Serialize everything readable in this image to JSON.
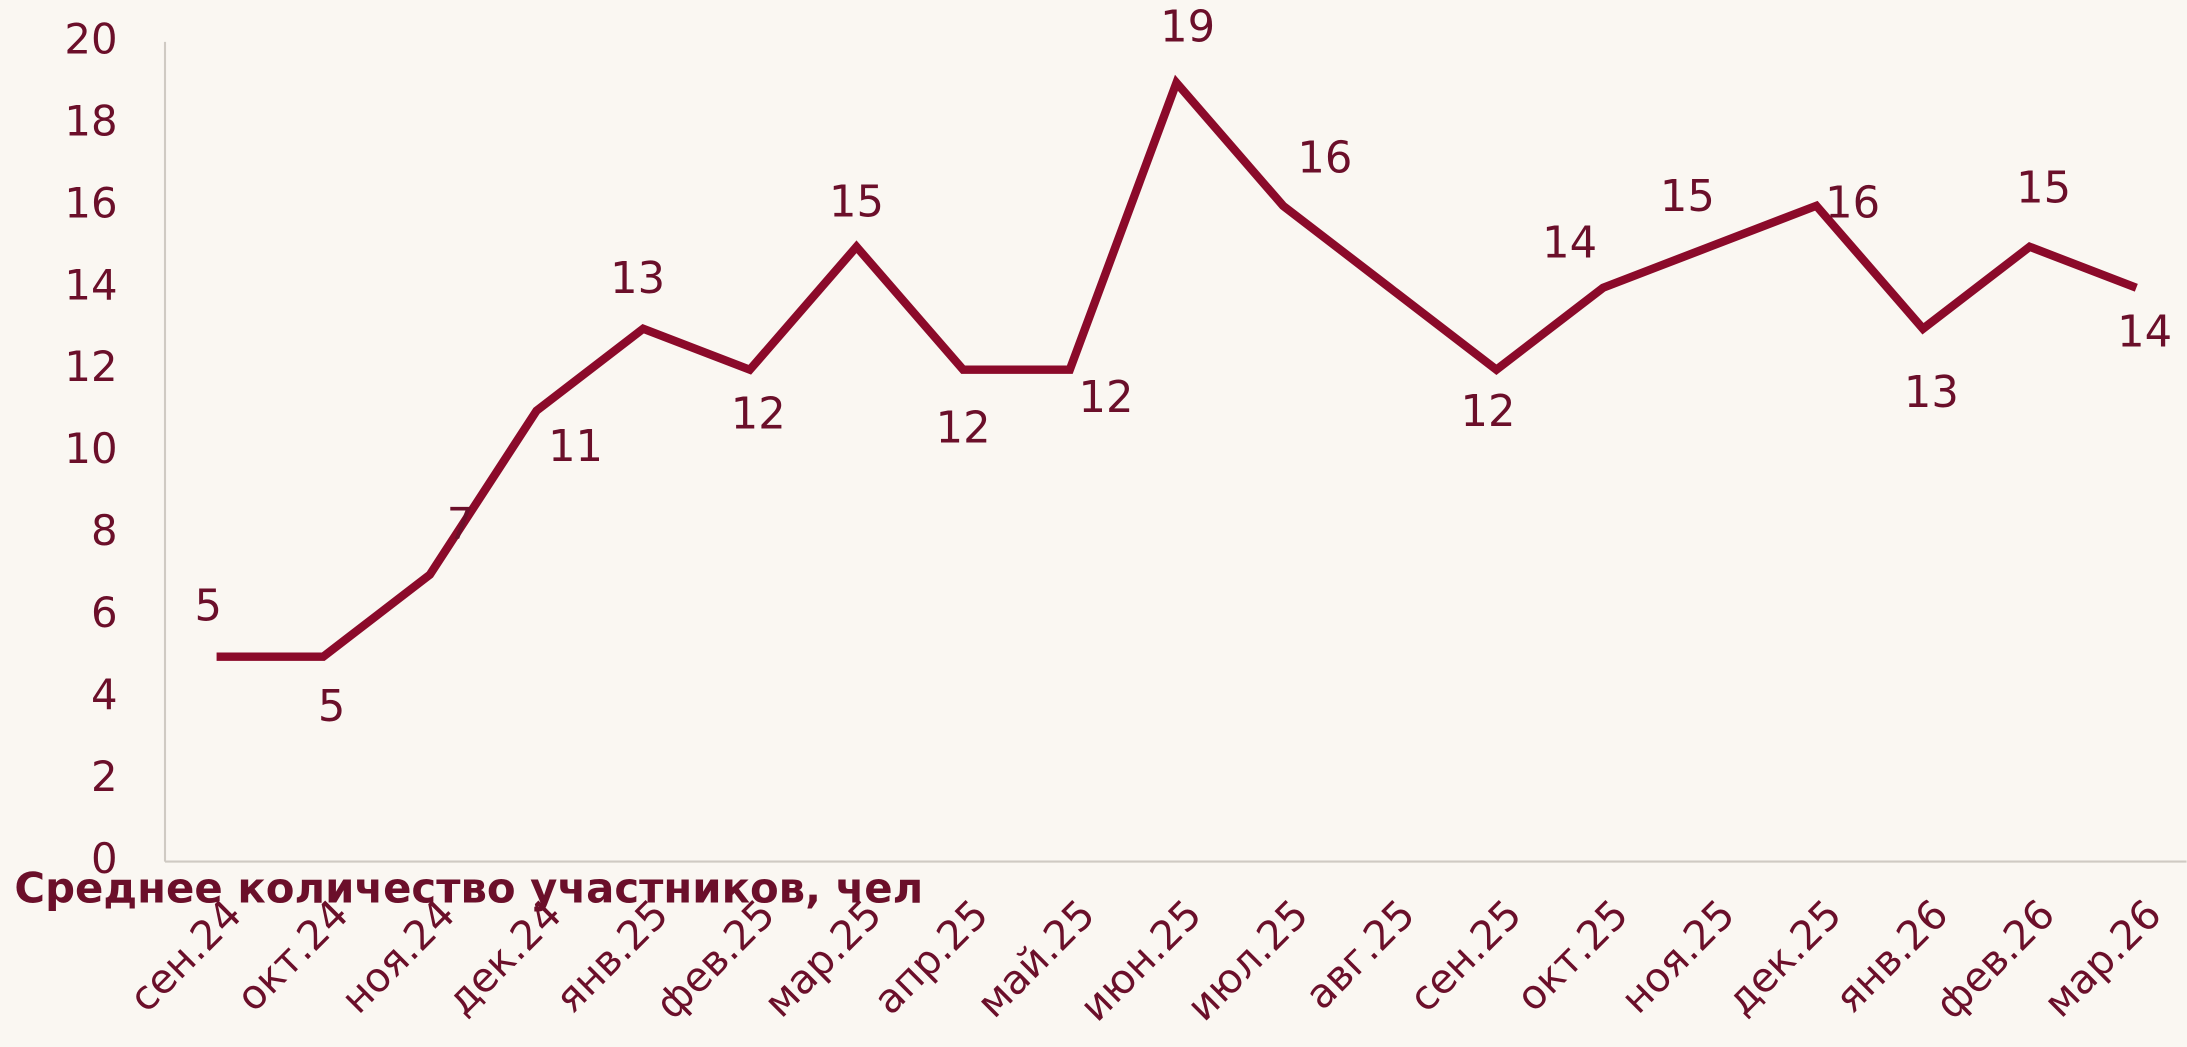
{
  "chart_data": {
    "type": "line",
    "x_axis_label": "Среднее количество участников, чел",
    "categories": [
      "сен.24",
      "окт.24",
      "ноя.24",
      "дек.24",
      "янв.25",
      "фев.25",
      "мар.25",
      "апр.25",
      "май.25",
      "июн.25",
      "июл.25",
      "авг.25",
      "сен.25",
      "окт.25",
      "ноя.25",
      "дек.25",
      "янв.26",
      "фев.26",
      "мар.26"
    ],
    "values": [
      5,
      5,
      7,
      11,
      13,
      12,
      15,
      12,
      12,
      19,
      16,
      14,
      12,
      14,
      15,
      16,
      13,
      15,
      14
    ],
    "value_labels": [
      "5",
      "5",
      "7",
      "11",
      "13",
      "12",
      "15",
      "12",
      "12",
      "19",
      "16",
      null,
      "12",
      "14",
      "15",
      "16",
      "13",
      "15",
      "14"
    ],
    "color": "#8b0a2a",
    "ylim": [
      0,
      20
    ],
    "yticks": [
      0,
      2,
      4,
      6,
      8,
      10,
      12,
      14,
      16,
      18,
      20
    ],
    "grid": false
  }
}
